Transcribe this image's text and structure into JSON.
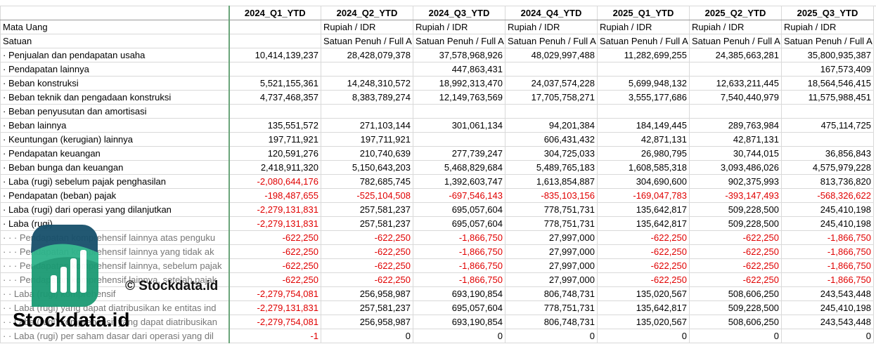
{
  "table": {
    "columns": [
      "2024_Q1_YTD",
      "2024_Q2_YTD",
      "2024_Q3_YTD",
      "2024_Q4_YTD",
      "2025_Q1_YTD",
      "2025_Q2_YTD",
      "2025_Q3_YTD"
    ],
    "rows": [
      {
        "label": "Mata Uang",
        "cells": [
          null,
          "Rupiah / IDR",
          "Rupiah / IDR",
          "Rupiah / IDR",
          "Rupiah / IDR",
          "Rupiah / IDR",
          "Rupiah / IDR"
        ]
      },
      {
        "label": "Satuan",
        "cells": [
          null,
          "Satuan Penuh / Full A",
          "Satuan Penuh / Full A",
          "Satuan Penuh / Full A",
          "Satuan Penuh / Full A",
          "Satuan Penuh / Full A",
          "Satuan Penuh / Full A"
        ]
      },
      {
        "label": "· Penjualan dan pendapatan usaha",
        "cells": [
          "10,414,139,237",
          "28,428,079,378",
          "37,578,968,926",
          "48,029,997,488",
          "11,282,699,255",
          "24,385,663,281",
          "35,800,935,387"
        ]
      },
      {
        "label": "· Pendapatan lainnya",
        "cells": [
          null,
          null,
          "447,863,431",
          null,
          null,
          null,
          "167,573,409"
        ]
      },
      {
        "label": "· Beban konstruksi",
        "cells": [
          "5,521,155,361",
          "14,248,310,572",
          "18,992,313,470",
          "24,037,574,228",
          "5,699,948,132",
          "12,633,211,445",
          "18,564,546,415"
        ]
      },
      {
        "label": "· Beban teknik dan pengadaan konstruksi",
        "cells": [
          "4,737,468,357",
          "8,383,789,274",
          "12,149,763,569",
          "17,705,758,271",
          "3,555,177,686",
          "7,540,440,979",
          "11,575,988,451"
        ]
      },
      {
        "label": "· Beban penyusutan dan amortisasi",
        "cells": [
          null,
          null,
          null,
          null,
          null,
          null,
          null
        ]
      },
      {
        "label": "· Beban lainnya",
        "cells": [
          "135,551,572",
          "271,103,144",
          "301,061,134",
          "94,201,384",
          "184,149,445",
          "289,763,984",
          "475,114,725"
        ]
      },
      {
        "label": "· Keuntungan (kerugian) lainnya",
        "cells": [
          "197,711,921",
          "197,711,921",
          null,
          "606,431,432",
          "42,871,131",
          "42,871,131",
          null
        ]
      },
      {
        "label": "· Pendapatan keuangan",
        "cells": [
          "120,591,276",
          "210,740,639",
          "277,739,247",
          "304,725,033",
          "26,980,795",
          "30,744,015",
          "36,856,843"
        ]
      },
      {
        "label": "· Beban bunga dan keuangan",
        "cells": [
          "2,418,911,320",
          "5,150,643,203",
          "5,468,829,684",
          "5,489,765,183",
          "1,608,585,318",
          "3,093,486,026",
          "4,575,979,228"
        ]
      },
      {
        "label": "· Laba (rugi) sebelum pajak penghasilan",
        "cells": [
          "-2,080,644,176",
          "782,685,745",
          "1,392,603,747",
          "1,613,854,887",
          "304,690,600",
          "902,375,993",
          "813,736,820"
        ]
      },
      {
        "label": "· Pendapatan (beban) pajak",
        "cells": [
          "-198,487,655",
          "-525,104,508",
          "-697,546,143",
          "-835,103,156",
          "-169,047,783",
          "-393,147,493",
          "-568,326,622"
        ]
      },
      {
        "label": "· Laba (rugi) dari operasi yang dilanjutkan",
        "cells": [
          "-2,279,131,831",
          "257,581,237",
          "695,057,604",
          "778,751,731",
          "135,642,817",
          "509,228,500",
          "245,410,198"
        ]
      },
      {
        "label": "· Laba (rugi)",
        "cells": [
          "-2,279,131,831",
          "257,581,237",
          "695,057,604",
          "778,751,731",
          "135,642,817",
          "509,228,500",
          "245,410,198"
        ]
      },
      {
        "label": "· · · Pendapatan komprehensif lainnya atas penguku",
        "cells": [
          "-622,250",
          "-622,250",
          "-1,866,750",
          "27,997,000",
          "-622,250",
          "-622,250",
          "-1,866,750"
        ]
      },
      {
        "label": "· · · Pendapatan komprehensif lainnya yang tidak ak",
        "cells": [
          "-622,250",
          "-622,250",
          "-1,866,750",
          "27,997,000",
          "-622,250",
          "-622,250",
          "-1,866,750"
        ]
      },
      {
        "label": "· · · Pendapatan komprehensif lainnya, sebelum pajak",
        "cells": [
          "-622,250",
          "-622,250",
          "-1,866,750",
          "27,997,000",
          "-622,250",
          "-622,250",
          "-1,866,750"
        ]
      },
      {
        "label": "· · · Pendapatan komprehensif lainnya, setelah pajak",
        "cells": [
          "-622,250",
          "-622,250",
          "-1,866,750",
          "27,997,000",
          "-622,250",
          "-622,250",
          "-1,866,750"
        ]
      },
      {
        "label": "· · Laba (rugi) komprehensif",
        "cells": [
          "-2,279,754,081",
          "256,958,987",
          "693,190,854",
          "806,748,731",
          "135,020,567",
          "508,606,250",
          "243,543,448"
        ]
      },
      {
        "label": "· · Laba (rugi) yang dapat diatribusikan ke entitas ind",
        "cells": [
          "-2,279,131,831",
          "257,581,237",
          "695,057,604",
          "778,751,731",
          "135,642,817",
          "509,228,500",
          "245,410,198"
        ]
      },
      {
        "label": "· · Laba (rugi) komprehensif yang dapat diatribusikan",
        "cells": [
          "-2,279,754,081",
          "256,958,987",
          "693,190,854",
          "806,748,731",
          "135,020,567",
          "508,606,250",
          "243,543,448"
        ]
      },
      {
        "label": "· · Laba (rugi) per saham dasar dari operasi yang dil",
        "cells": [
          "-1",
          "0",
          "0",
          "0",
          "0",
          "0",
          "0"
        ]
      }
    ]
  },
  "watermark": {
    "caption": "© Stockdata.id",
    "brand": "Stockdata.id"
  }
}
